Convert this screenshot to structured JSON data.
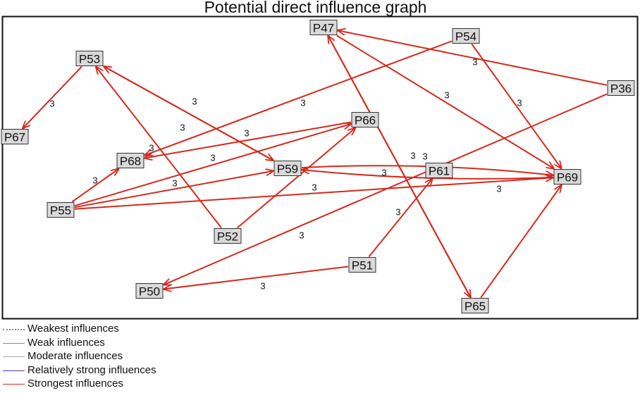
{
  "title": "Potential direct influence graph",
  "nodes": [
    {
      "id": "P47",
      "label": "P47"
    },
    {
      "id": "P54",
      "label": "P54"
    },
    {
      "id": "P53",
      "label": "P53"
    },
    {
      "id": "P36",
      "label": "P36"
    },
    {
      "id": "P67",
      "label": "P67"
    },
    {
      "id": "P66",
      "label": "P66"
    },
    {
      "id": "P68",
      "label": "P68"
    },
    {
      "id": "P59",
      "label": "P59"
    },
    {
      "id": "P61",
      "label": "P61"
    },
    {
      "id": "P69",
      "label": "P69"
    },
    {
      "id": "P55",
      "label": "P55"
    },
    {
      "id": "P52",
      "label": "P52"
    },
    {
      "id": "P51",
      "label": "P51"
    },
    {
      "id": "P50",
      "label": "P50"
    },
    {
      "id": "P65",
      "label": "P65"
    }
  ],
  "edges": [
    {
      "from": "P54",
      "to": "P68",
      "weight": "3"
    },
    {
      "from": "P54",
      "to": "P69",
      "weight": "3"
    },
    {
      "from": "P36",
      "to": "P47",
      "weight": "3"
    },
    {
      "from": "P36",
      "to": "P50",
      "weight": "3"
    },
    {
      "from": "P47",
      "to": "P69",
      "weight": "3"
    },
    {
      "from": "P47",
      "to": "P65",
      "weight": "3"
    },
    {
      "from": "P65",
      "to": "P47",
      "weight": ""
    },
    {
      "from": "P53",
      "to": "P67",
      "weight": "3"
    },
    {
      "from": "P53",
      "to": "P59",
      "weight": "3"
    },
    {
      "from": "P59",
      "to": "P53",
      "weight": "3"
    },
    {
      "from": "P52",
      "to": "P53",
      "weight": "3"
    },
    {
      "from": "P52",
      "to": "P66",
      "weight": "3"
    },
    {
      "from": "P66",
      "to": "P68",
      "weight": "3"
    },
    {
      "from": "P55",
      "to": "P68",
      "weight": "3"
    },
    {
      "from": "P55",
      "to": "P66",
      "weight": "3"
    },
    {
      "from": "P55",
      "to": "P59",
      "weight": "3"
    },
    {
      "from": "P55",
      "to": "P69",
      "weight": "3"
    },
    {
      "from": "P59",
      "to": "P69",
      "weight": "3"
    },
    {
      "from": "P69",
      "to": "P59",
      "weight": "3"
    },
    {
      "from": "P51",
      "to": "P61",
      "weight": "3"
    },
    {
      "from": "P51",
      "to": "P50",
      "weight": "3"
    },
    {
      "from": "P65",
      "to": "P69",
      "weight": ""
    }
  ],
  "legend": [
    {
      "label": "Weakest influences",
      "color": "#8c8c8c",
      "style": "dotted"
    },
    {
      "label": "Weak influences",
      "color": "#5f9e8a",
      "style": "solid"
    },
    {
      "label": "Moderate influences",
      "color": "#a8a8a8",
      "style": "solid"
    },
    {
      "label": "Relatively strong influences",
      "color": "#4a3f9e",
      "style": "solid"
    },
    {
      "label": "Strongest influences",
      "color": "#d42a1e",
      "style": "solid"
    }
  ],
  "colors": {
    "edge": "#d42a1e",
    "node_fill": "#d9d9d9",
    "node_border": "#333333",
    "frame": "#111111"
  }
}
